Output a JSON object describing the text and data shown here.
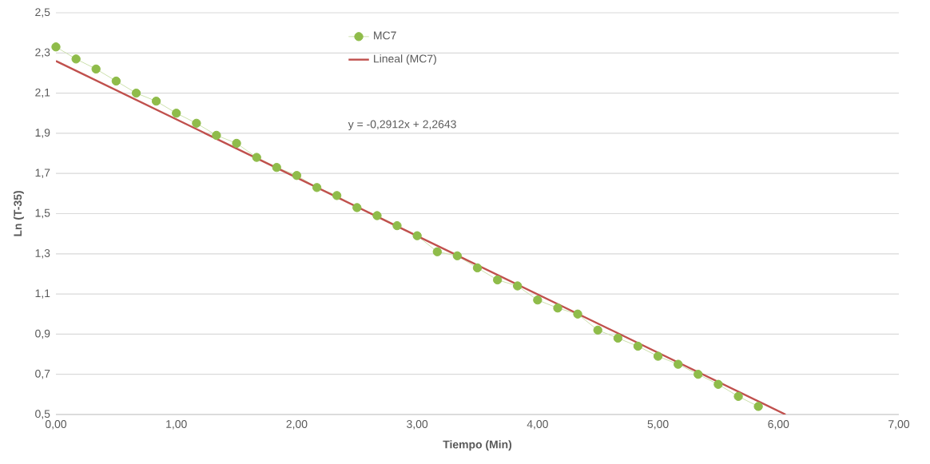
{
  "chart_data": {
    "type": "line",
    "xlabel": "Tiempo (Min)",
    "ylabel": "Ln (T-35)",
    "x": [
      0,
      0.167,
      0.333,
      0.5,
      0.667,
      0.833,
      1,
      1.167,
      1.333,
      1.5,
      1.667,
      1.833,
      2,
      2.167,
      2.333,
      2.5,
      2.667,
      2.833,
      3,
      3.167,
      3.333,
      3.5,
      3.667,
      3.833,
      4,
      4.167,
      4.333,
      4.5,
      4.667,
      4.833,
      5,
      5.167,
      5.333,
      5.5,
      5.667,
      5.833
    ],
    "series": [
      {
        "name": "MC7",
        "marker": "circle",
        "color": "#8fbc4a",
        "values": [
          2.33,
          2.27,
          2.22,
          2.16,
          2.1,
          2.06,
          2.0,
          1.95,
          1.89,
          1.85,
          1.78,
          1.73,
          1.69,
          1.63,
          1.59,
          1.53,
          1.49,
          1.44,
          1.39,
          1.31,
          1.29,
          1.23,
          1.17,
          1.14,
          1.07,
          1.03,
          1.0,
          0.92,
          0.88,
          0.84,
          0.79,
          0.75,
          0.7,
          0.65,
          0.59,
          0.54
        ]
      },
      {
        "name": "Lineal (MC7)",
        "type": "line",
        "marker": "none",
        "color": "#c0504d",
        "x": [
          0,
          6.059
        ],
        "values": [
          2.26,
          0.5
        ]
      }
    ],
    "xlim": [
      0,
      7
    ],
    "ylim": [
      0.5,
      2.5
    ],
    "xticks": [
      {
        "value": 0,
        "label": "0,00"
      },
      {
        "value": 1,
        "label": "1,00"
      },
      {
        "value": 2,
        "label": "2,00"
      },
      {
        "value": 3,
        "label": "3,00"
      },
      {
        "value": 4,
        "label": "4,00"
      },
      {
        "value": 5,
        "label": "5,00"
      },
      {
        "value": 6,
        "label": "6,00"
      },
      {
        "value": 7,
        "label": "7,00"
      }
    ],
    "yticks": [
      {
        "value": 0.5,
        "label": "0,5"
      },
      {
        "value": 0.7,
        "label": "0,7"
      },
      {
        "value": 0.9,
        "label": "0,9"
      },
      {
        "value": 1.1,
        "label": "1,1"
      },
      {
        "value": 1.3,
        "label": "1,3"
      },
      {
        "value": 1.5,
        "label": "1,5"
      },
      {
        "value": 1.7,
        "label": "1,7"
      },
      {
        "value": 1.9,
        "label": "1,9"
      },
      {
        "value": 2.1,
        "label": "2,1"
      },
      {
        "value": 2.3,
        "label": "2,3"
      },
      {
        "value": 2.5,
        "label": "2,5"
      }
    ],
    "annotations": [
      "y = -0,2912x + 2,2643"
    ],
    "grid": "y",
    "legend": "top"
  }
}
